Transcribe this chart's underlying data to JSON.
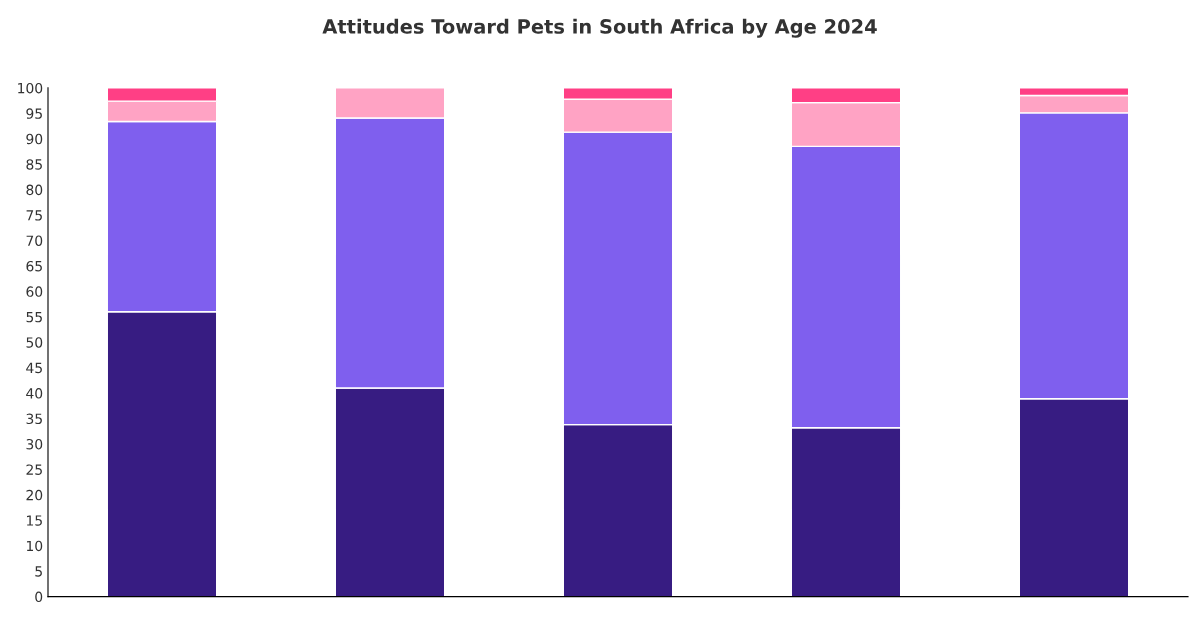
{
  "chart_data": {
    "type": "bar",
    "title": "Attitudes Toward Pets in South Africa by Age 2024",
    "stacked": true,
    "categories": [
      null,
      null,
      null,
      null,
      null
    ],
    "series": [
      {
        "color": "#371c82",
        "values": [
          56,
          41,
          33.8,
          33.2,
          38.9
        ]
      },
      {
        "color": "#7f5fee",
        "values": [
          37.4,
          53.1,
          57.5,
          55.3,
          56.2
        ]
      },
      {
        "color": "#ffa3c4",
        "values": [
          4,
          5.9,
          6.5,
          8.6,
          3.4
        ]
      },
      {
        "color": "#ff3f85",
        "values": [
          2.6,
          null,
          2.2,
          2.9,
          1.5
        ]
      }
    ],
    "ylim": [
      0,
      100
    ],
    "yticks": [
      0,
      5,
      10,
      15,
      20,
      25,
      30,
      35,
      40,
      45,
      50,
      55,
      60,
      65,
      70,
      75,
      80,
      85,
      90,
      95,
      100
    ],
    "grid": false,
    "legend": false
  }
}
